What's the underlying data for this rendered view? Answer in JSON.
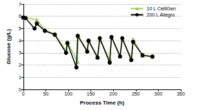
{
  "chart_data": {
    "type": "line",
    "x_label": "Process Time (h)",
    "y_label": "Glucose (g/L)",
    "xlim": [
      0,
      350
    ],
    "xticks": [
      0,
      50,
      100,
      150,
      200,
      250,
      300,
      350
    ],
    "ylim": [
      0,
      7
    ],
    "yticks": [
      0,
      1,
      2,
      3,
      4,
      5,
      6,
      7
    ],
    "grid": true,
    "legend": "top-right",
    "series": [
      {
        "name": "10 L CelliGen",
        "color": "#9acd52",
        "marker": "triangle",
        "x": [
          0,
          5,
          30,
          48,
          70,
          95,
          98,
          120,
          122,
          142,
          145,
          165,
          170,
          192,
          196,
          215,
          220,
          240,
          244,
          265,
          287
        ],
        "values": [
          5.9,
          5.9,
          5.7,
          4.9,
          4.5,
          3.2,
          3.9,
          2.3,
          4.4,
          3.2,
          4.0,
          2.7,
          4.1,
          2.5,
          4.3,
          2.8,
          4.1,
          2.6,
          4.1,
          2.8,
          2.7
        ]
      },
      {
        "name": "200 L Allegro",
        "color": "#000000",
        "marker": "circle",
        "x": [
          0,
          5,
          25,
          30,
          48,
          70,
          95,
          98,
          118,
          121,
          142,
          145,
          165,
          170,
          192,
          196,
          215,
          220,
          240,
          244,
          265,
          287
        ],
        "values": [
          5.9,
          5.85,
          5.0,
          5.4,
          4.8,
          4.5,
          3.0,
          3.8,
          1.8,
          4.4,
          3.1,
          4.0,
          2.6,
          4.2,
          2.2,
          4.3,
          2.7,
          4.2,
          2.4,
          3.9,
          2.8,
          2.7
        ]
      }
    ]
  }
}
